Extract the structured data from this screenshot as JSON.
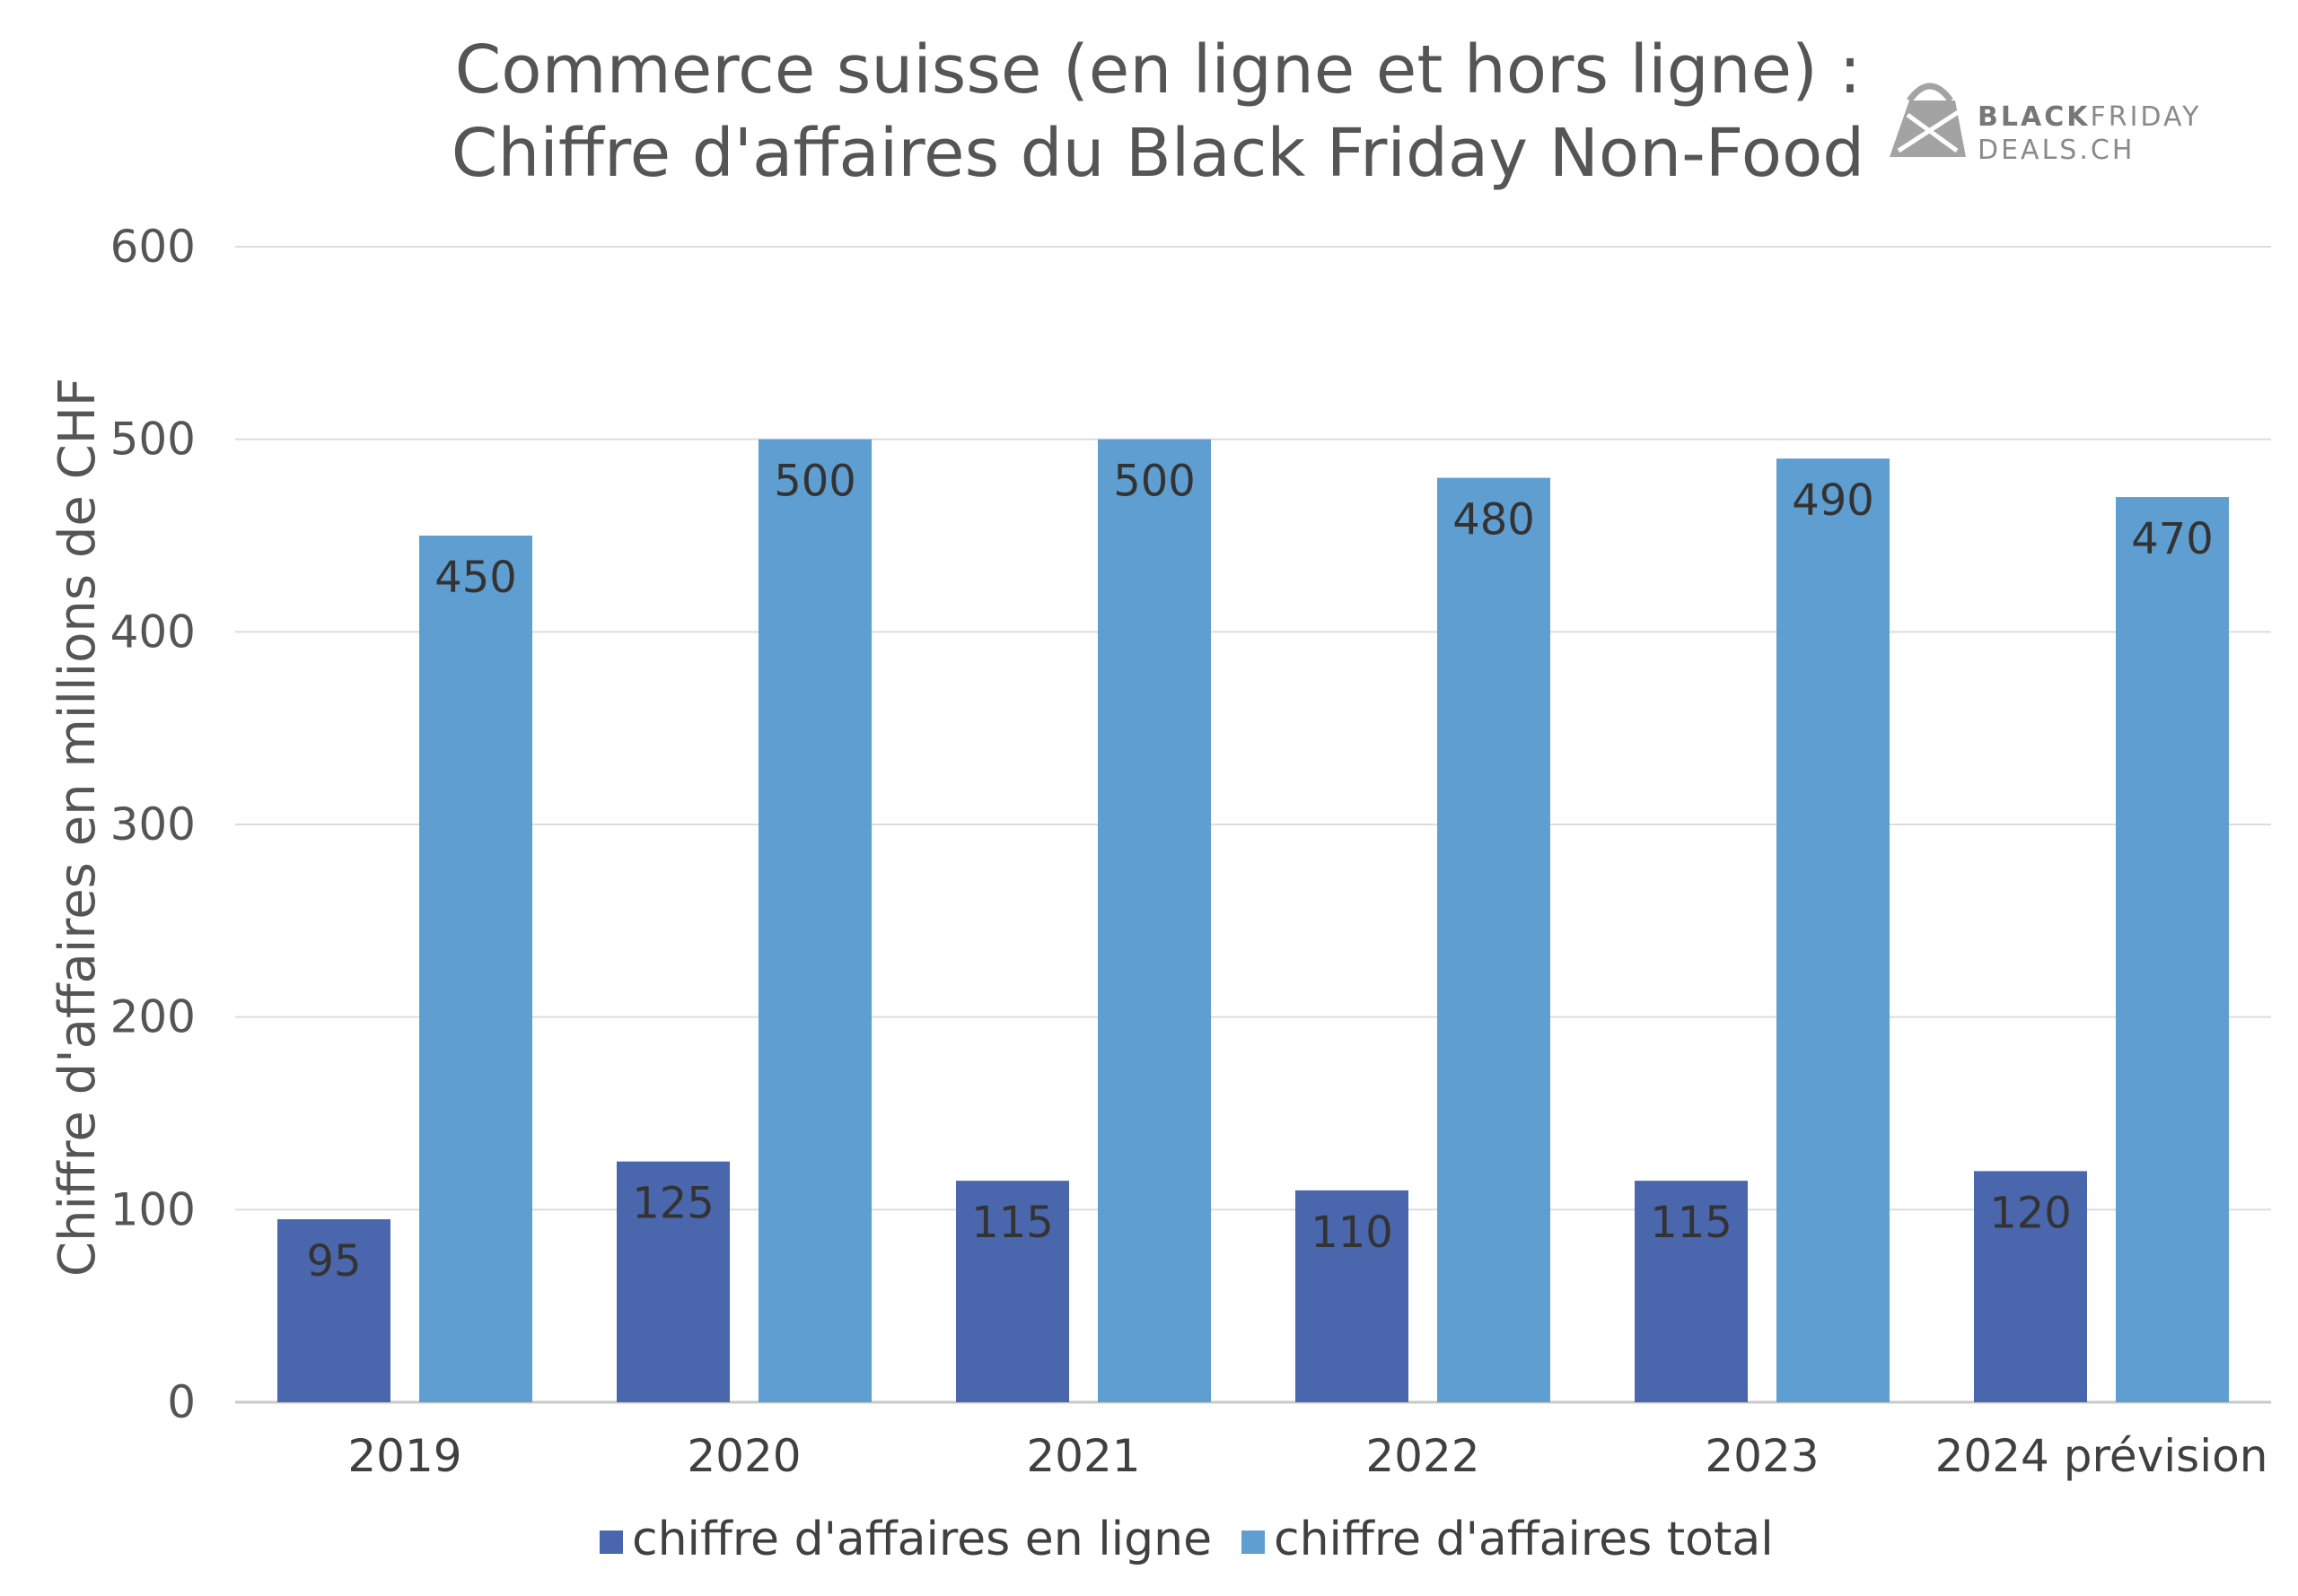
{
  "chart_data": {
    "type": "bar",
    "title": [
      "Commerce suisse (en ligne et hors ligne) :",
      "Chiffre d'affaires du Black Friday Non-Food"
    ],
    "ylabel": "Chiffre d'affaires en millions de CHF",
    "ylim": [
      0,
      600
    ],
    "yticks": [
      "0",
      "100",
      "200",
      "300",
      "400",
      "500",
      "600"
    ],
    "grid": true,
    "legend_position": "bottom",
    "categories": [
      "2019",
      "2020",
      "2021",
      "2022",
      "2023",
      "2024 prévision"
    ],
    "series": [
      {
        "name": "chiffre d'affaires en ligne",
        "color": "#4a66ac",
        "values": [
          95,
          125,
          115,
          110,
          115,
          120
        ]
      },
      {
        "name": "chiffre d'affaires total",
        "color": "#5f9ed1",
        "values": [
          450,
          500,
          500,
          480,
          490,
          470
        ]
      }
    ]
  },
  "logo": {
    "bold": "BLACK",
    "rest": "FRIDAY",
    "line2": "DEALS.CH",
    "icon": "shopping-bag-icon"
  }
}
